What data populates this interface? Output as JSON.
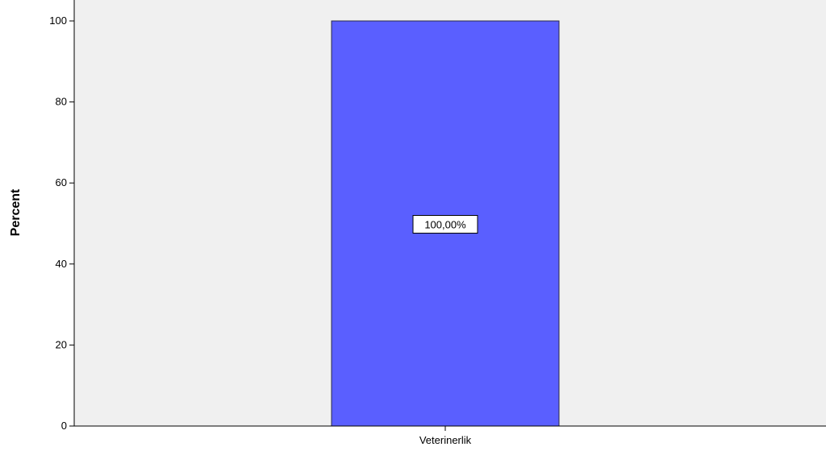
{
  "chart_data": {
    "type": "bar",
    "categories": [
      "Veterinerlik"
    ],
    "values": [
      100
    ],
    "data_labels": [
      "100,00%"
    ],
    "ylabel": "Percent",
    "xlabel": "",
    "ylim": [
      0,
      100
    ],
    "yticks": [
      0,
      20,
      40,
      60,
      80,
      100
    ],
    "grid": false,
    "colors": {
      "plot_background": "#f0f0f0",
      "bar_fill": "#5a5fff",
      "bar_stroke": "#2a2a4a",
      "axis": "#000000"
    }
  }
}
